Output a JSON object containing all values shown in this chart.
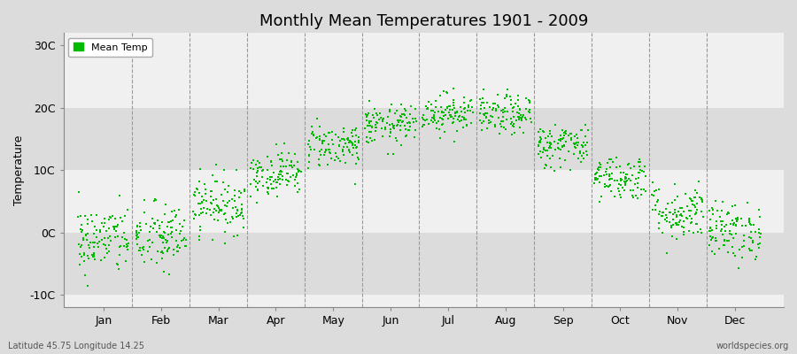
{
  "title": "Monthly Mean Temperatures 1901 - 2009",
  "ylabel": "Temperature",
  "xlabel_labels": [
    "Jan",
    "Feb",
    "Mar",
    "Apr",
    "May",
    "Jun",
    "Jul",
    "Aug",
    "Sep",
    "Oct",
    "Nov",
    "Dec"
  ],
  "ytick_labels": [
    "-10C",
    "0C",
    "10C",
    "20C",
    "30C"
  ],
  "ytick_values": [
    -10,
    0,
    10,
    20,
    30
  ],
  "ylim": [
    -12,
    32
  ],
  "xlim": [
    0.3,
    12.85
  ],
  "legend_label": "Mean Temp",
  "dot_color": "#00bb00",
  "dot_size": 3,
  "bg_light": "#f0f0f0",
  "bg_dark": "#dcdcdc",
  "footer_left": "Latitude 45.75 Longitude 14.25",
  "footer_right": "worldspecies.org",
  "monthly_means": [
    -1.2,
    -0.8,
    4.5,
    9.5,
    14.0,
    17.2,
    19.2,
    18.8,
    14.0,
    8.8,
    3.2,
    0.2
  ],
  "monthly_stds": [
    2.8,
    2.8,
    2.3,
    1.8,
    1.8,
    1.6,
    1.6,
    1.6,
    1.8,
    1.8,
    2.3,
    2.3
  ],
  "n_years": 109,
  "seed": 42,
  "x_spread": 0.45
}
